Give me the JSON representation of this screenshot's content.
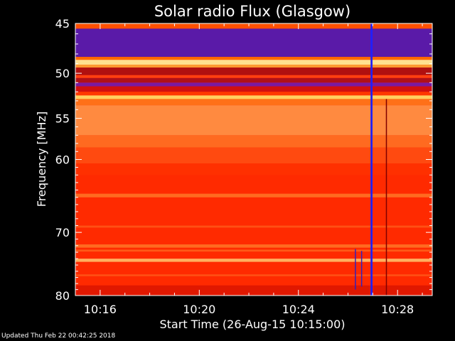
{
  "footer_text": "Updated Thu Feb 22 00:42:25 2018",
  "chart_data": {
    "type": "heatmap",
    "title": "Solar radio Flux (Glasgow)",
    "xlabel": "Start Time (26-Aug-15 10:15:00)",
    "ylabel": "Frequency [MHz]",
    "y_scale": "log",
    "x_range_minutes": [
      15.0,
      29.4
    ],
    "y_range_mhz": [
      45,
      80
    ],
    "x_ticks": [
      {
        "value": 16,
        "label": "10:16"
      },
      {
        "value": 20,
        "label": "10:20"
      },
      {
        "value": 24,
        "label": "10:24"
      },
      {
        "value": 28,
        "label": "10:28"
      }
    ],
    "y_ticks": [
      {
        "value": 45,
        "label": "45"
      },
      {
        "value": 50,
        "label": "50"
      },
      {
        "value": 55,
        "label": "55"
      },
      {
        "value": 60,
        "label": "60"
      },
      {
        "value": 70,
        "label": "70"
      },
      {
        "value": 80,
        "label": "80"
      }
    ],
    "background_color": "#ff2a00",
    "bands": [
      {
        "f0": 45.0,
        "f1": 45.5,
        "color": "#ff5000"
      },
      {
        "f0": 45.5,
        "f1": 48.3,
        "color": "#5a1aa8"
      },
      {
        "f0": 48.3,
        "f1": 48.6,
        "color": "#ff6a00"
      },
      {
        "f0": 48.6,
        "f1": 49.1,
        "color": "#ffe090"
      },
      {
        "f0": 49.1,
        "f1": 49.4,
        "color": "#ff9a30"
      },
      {
        "f0": 49.4,
        "f1": 50.2,
        "color": "#b01010"
      },
      {
        "f0": 50.2,
        "f1": 50.5,
        "color": "#ff4010"
      },
      {
        "f0": 50.5,
        "f1": 51.0,
        "color": "#b01018"
      },
      {
        "f0": 51.0,
        "f1": 51.4,
        "color": "#7a1aa0"
      },
      {
        "f0": 51.4,
        "f1": 52.0,
        "color": "#d01010"
      },
      {
        "f0": 52.0,
        "f1": 52.4,
        "color": "#ff3800"
      },
      {
        "f0": 52.4,
        "f1": 52.8,
        "color": "#ffd060"
      },
      {
        "f0": 52.8,
        "f1": 53.5,
        "color": "#ff7018"
      },
      {
        "f0": 53.5,
        "f1": 57.0,
        "color": "#ff8a40"
      },
      {
        "f0": 57.0,
        "f1": 58.5,
        "color": "#ff6a20"
      },
      {
        "f0": 58.5,
        "f1": 60.5,
        "color": "#ff4a10"
      },
      {
        "f0": 60.5,
        "f1": 62.0,
        "color": "#ff3000"
      },
      {
        "f0": 64.5,
        "f1": 65.0,
        "color": "#ff6a20"
      },
      {
        "f0": 69.0,
        "f1": 69.3,
        "color": "#ff5014"
      },
      {
        "f0": 71.8,
        "f1": 72.3,
        "color": "#ff6a20"
      },
      {
        "f0": 72.6,
        "f1": 72.9,
        "color": "#ff5a18"
      },
      {
        "f0": 74.0,
        "f1": 74.5,
        "color": "#ffb060"
      },
      {
        "f0": 76.5,
        "f1": 76.8,
        "color": "#ff5014"
      },
      {
        "f0": 78.3,
        "f1": 80.0,
        "color": "#e01800"
      }
    ],
    "bursts": [
      {
        "t": 26.95,
        "f0": 45.0,
        "f1": 80.0,
        "color": "#2020ff",
        "width_min": 0.08
      },
      {
        "t": 27.55,
        "f0": 52.8,
        "f1": 80.0,
        "color": "#800000",
        "width_min": 0.04
      },
      {
        "t": 26.3,
        "f0": 72.5,
        "f1": 79.0,
        "color": "#3020c0",
        "width_min": 0.04
      },
      {
        "t": 26.55,
        "f0": 72.8,
        "f1": 78.5,
        "color": "#3020c0",
        "width_min": 0.04
      }
    ]
  }
}
